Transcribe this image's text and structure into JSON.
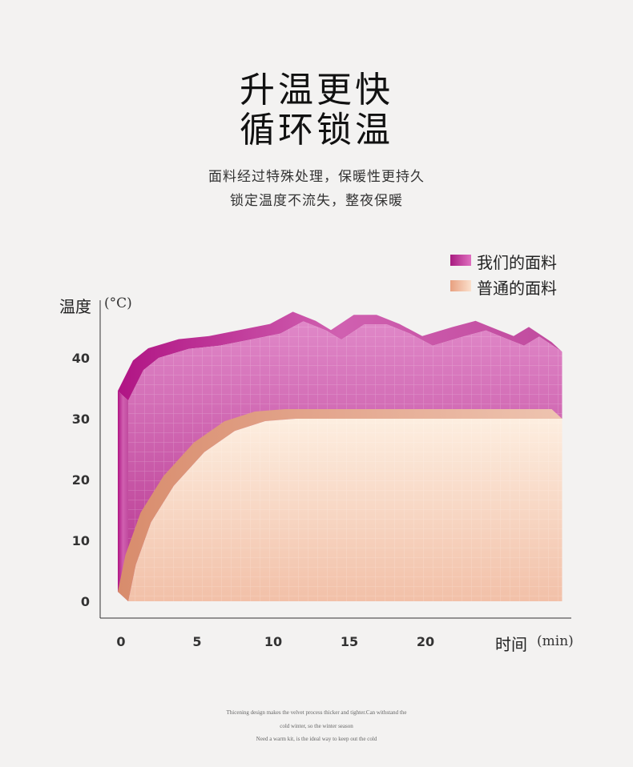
{
  "title": [
    "升温更快",
    "循环锁温"
  ],
  "subtitle": [
    "面料经过特殊处理，保暖性更持久",
    "锁定温度不流失，整夜保暖"
  ],
  "footer": [
    "Thicening design makes the velvet process thicker and tighter.Can withstand the",
    "cold winter, so the winter season",
    "Need a warm kit, is the ideal way to keep out the cold"
  ],
  "chart_data": {
    "type": "area",
    "ylabel": "温度",
    "yunit": "(°C)",
    "xlabel": "时间",
    "xunit": "(min)",
    "yticks": [
      "0",
      "10",
      "20",
      "30",
      "40"
    ],
    "xticks": [
      "0",
      "5",
      "10",
      "15",
      "20"
    ],
    "ylim": [
      0,
      45
    ],
    "xlim": [
      0,
      28.5
    ],
    "legend_position": "top-right",
    "series": [
      {
        "name": "我们的面料",
        "color": "#c040a0",
        "points": [
          [
            0,
            33
          ],
          [
            1,
            38
          ],
          [
            2,
            40
          ],
          [
            4,
            41.5
          ],
          [
            6,
            42
          ],
          [
            8,
            43
          ],
          [
            10,
            44
          ],
          [
            11.5,
            46
          ],
          [
            13,
            44.5
          ],
          [
            14,
            43
          ],
          [
            15.5,
            45.5
          ],
          [
            17,
            45.5
          ],
          [
            18.5,
            44
          ],
          [
            20,
            42
          ],
          [
            22,
            43.5
          ],
          [
            23.5,
            44.5
          ],
          [
            25,
            43
          ],
          [
            26,
            42
          ],
          [
            27,
            43.5
          ],
          [
            28.5,
            41
          ]
        ]
      },
      {
        "name": "普通的面料",
        "color": "#e8a888",
        "points": [
          [
            0,
            0
          ],
          [
            0.5,
            6
          ],
          [
            1.5,
            13
          ],
          [
            3,
            19
          ],
          [
            5,
            24.5
          ],
          [
            7,
            28
          ],
          [
            9,
            29.6
          ],
          [
            11,
            30
          ],
          [
            28.5,
            30
          ]
        ]
      }
    ]
  }
}
